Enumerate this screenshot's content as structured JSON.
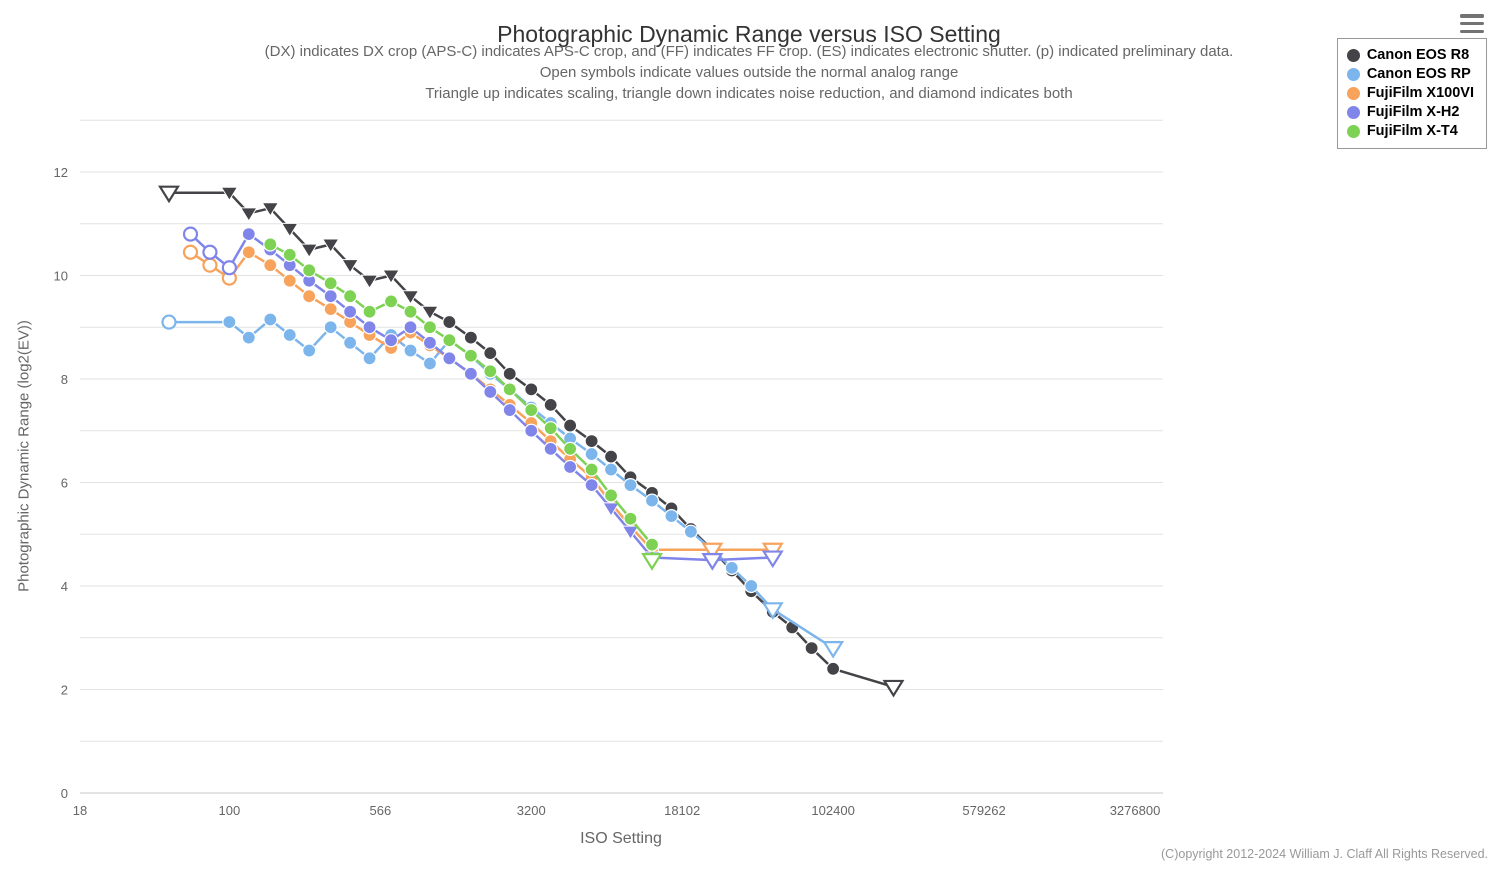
{
  "header": {
    "title": "Photographic Dynamic Range versus ISO Setting",
    "subtitle_lines": [
      "(DX) indicates DX crop (APS-C) indicates APS-C crop, and (FF) indicates FF crop. (ES) indicates electronic shutter. (p) indicated preliminary data.",
      "Open symbols indicate values outside the normal analog range",
      "Triangle up indicates scaling, triangle down indicates noise reduction, and diamond indicates both"
    ]
  },
  "footer": {
    "copyright": "(C)opyright 2012-2024 William J. Claff All Rights Reserved."
  },
  "menu": {
    "icon": "hamburger-icon"
  },
  "chart_data": {
    "type": "line",
    "title": "Photographic Dynamic Range versus ISO Setting",
    "xlabel": "ISO Setting",
    "ylabel": "Photographic Dynamic Range (log2(EV))",
    "x_scale": "log",
    "xlim": [
      18,
      3276800
    ],
    "ylim": [
      0,
      13
    ],
    "grid": "horizontal-every-1EV",
    "legend_position": "top-right",
    "x_ticks": [
      18,
      100,
      566,
      3200,
      18102,
      102400,
      579262,
      3276800
    ],
    "y_ticks_labeled": [
      0,
      2,
      4,
      6,
      8,
      10,
      12
    ],
    "marker_codes": {
      "c": "filled circle",
      "co": "open circle (outside normal analog range)",
      "td": "filled triangle-down (noise reduction)",
      "tdo": "open triangle-down (noise reduction, outside normal analog range)"
    },
    "series": [
      {
        "name": "Canon EOS R8",
        "color": "#434348",
        "points": [
          [
            50,
            11.6,
            "tdo"
          ],
          [
            100,
            11.6,
            "td"
          ],
          [
            125,
            11.2,
            "td"
          ],
          [
            160,
            11.3,
            "td"
          ],
          [
            200,
            10.9,
            "td"
          ],
          [
            250,
            10.5,
            "td"
          ],
          [
            320,
            10.6,
            "td"
          ],
          [
            400,
            10.2,
            "td"
          ],
          [
            500,
            9.9,
            "td"
          ],
          [
            640,
            10.0,
            "td"
          ],
          [
            800,
            9.6,
            "td"
          ],
          [
            1000,
            9.3,
            "td"
          ],
          [
            1250,
            9.1,
            "c"
          ],
          [
            1600,
            8.8,
            "c"
          ],
          [
            2000,
            8.5,
            "c"
          ],
          [
            2500,
            8.1,
            "c"
          ],
          [
            3200,
            7.8,
            "c"
          ],
          [
            4000,
            7.5,
            "c"
          ],
          [
            5000,
            7.1,
            "c"
          ],
          [
            6400,
            6.8,
            "c"
          ],
          [
            8000,
            6.5,
            "c"
          ],
          [
            10000,
            6.1,
            "c"
          ],
          [
            12800,
            5.8,
            "c"
          ],
          [
            16000,
            5.5,
            "c"
          ],
          [
            20000,
            5.1,
            "c"
          ],
          [
            25600,
            4.7,
            "c"
          ],
          [
            32000,
            4.3,
            "c"
          ],
          [
            40000,
            3.9,
            "c"
          ],
          [
            51200,
            3.5,
            "c"
          ],
          [
            64000,
            3.2,
            "c"
          ],
          [
            80000,
            2.8,
            "c"
          ],
          [
            102400,
            2.4,
            "c"
          ],
          [
            204800,
            2.05,
            "tdo"
          ]
        ]
      },
      {
        "name": "Canon EOS RP",
        "color": "#7cb5ec",
        "points": [
          [
            50,
            9.1,
            "co"
          ],
          [
            100,
            9.1,
            "c"
          ],
          [
            125,
            8.8,
            "c"
          ],
          [
            160,
            9.15,
            "c"
          ],
          [
            200,
            8.85,
            "c"
          ],
          [
            250,
            8.55,
            "c"
          ],
          [
            320,
            9.0,
            "c"
          ],
          [
            400,
            8.7,
            "c"
          ],
          [
            500,
            8.4,
            "c"
          ],
          [
            640,
            8.85,
            "c"
          ],
          [
            800,
            8.55,
            "c"
          ],
          [
            1000,
            8.3,
            "c"
          ],
          [
            1250,
            8.75,
            "c"
          ],
          [
            1600,
            8.45,
            "c"
          ],
          [
            2000,
            8.1,
            "c"
          ],
          [
            2500,
            7.8,
            "c"
          ],
          [
            3200,
            7.45,
            "c"
          ],
          [
            4000,
            7.15,
            "c"
          ],
          [
            5000,
            6.85,
            "c"
          ],
          [
            6400,
            6.55,
            "c"
          ],
          [
            8000,
            6.25,
            "c"
          ],
          [
            10000,
            5.95,
            "c"
          ],
          [
            12800,
            5.65,
            "c"
          ],
          [
            16000,
            5.35,
            "c"
          ],
          [
            20000,
            5.05,
            "c"
          ],
          [
            25600,
            4.7,
            "c"
          ],
          [
            32000,
            4.35,
            "c"
          ],
          [
            40000,
            4.0,
            "c"
          ],
          [
            51200,
            3.55,
            "tdo"
          ],
          [
            102400,
            2.8,
            "tdo"
          ]
        ]
      },
      {
        "name": "FujiFilm X100VI",
        "color": "#f7a35c",
        "points": [
          [
            64,
            10.45,
            "co"
          ],
          [
            80,
            10.2,
            "co"
          ],
          [
            100,
            9.95,
            "co"
          ],
          [
            125,
            10.45,
            "c"
          ],
          [
            160,
            10.2,
            "c"
          ],
          [
            200,
            9.9,
            "c"
          ],
          [
            250,
            9.6,
            "c"
          ],
          [
            320,
            9.35,
            "c"
          ],
          [
            400,
            9.1,
            "c"
          ],
          [
            500,
            8.85,
            "c"
          ],
          [
            640,
            8.6,
            "c"
          ],
          [
            800,
            8.9,
            "c"
          ],
          [
            1000,
            8.65,
            "c"
          ],
          [
            1250,
            8.4,
            "c"
          ],
          [
            1600,
            8.1,
            "c"
          ],
          [
            2000,
            7.8,
            "c"
          ],
          [
            2500,
            7.5,
            "c"
          ],
          [
            3200,
            7.15,
            "c"
          ],
          [
            4000,
            6.8,
            "c"
          ],
          [
            5000,
            6.45,
            "c"
          ],
          [
            6400,
            6.1,
            "c"
          ],
          [
            8000,
            5.6,
            "c"
          ],
          [
            10000,
            5.15,
            "c"
          ],
          [
            12800,
            4.7,
            "c"
          ],
          [
            25600,
            4.7,
            "tdo"
          ],
          [
            51200,
            4.7,
            "tdo"
          ]
        ]
      },
      {
        "name": "FujiFilm X-H2",
        "color": "#8085e9",
        "points": [
          [
            64,
            10.8,
            "co"
          ],
          [
            80,
            10.45,
            "co"
          ],
          [
            100,
            10.15,
            "co"
          ],
          [
            125,
            10.8,
            "c"
          ],
          [
            160,
            10.5,
            "c"
          ],
          [
            200,
            10.2,
            "c"
          ],
          [
            250,
            9.9,
            "c"
          ],
          [
            320,
            9.6,
            "c"
          ],
          [
            400,
            9.3,
            "c"
          ],
          [
            500,
            9.0,
            "c"
          ],
          [
            640,
            8.75,
            "c"
          ],
          [
            800,
            9.0,
            "c"
          ],
          [
            1000,
            8.7,
            "c"
          ],
          [
            1250,
            8.4,
            "c"
          ],
          [
            1600,
            8.1,
            "c"
          ],
          [
            2000,
            7.75,
            "c"
          ],
          [
            2500,
            7.4,
            "c"
          ],
          [
            3200,
            7.0,
            "c"
          ],
          [
            4000,
            6.65,
            "c"
          ],
          [
            5000,
            6.3,
            "c"
          ],
          [
            6400,
            5.95,
            "c"
          ],
          [
            8000,
            5.5,
            "td"
          ],
          [
            10000,
            5.05,
            "td"
          ],
          [
            12800,
            4.55,
            "td"
          ],
          [
            25600,
            4.5,
            "tdo"
          ],
          [
            51200,
            4.55,
            "tdo"
          ]
        ]
      },
      {
        "name": "FujiFilm X-T4",
        "color": "#7dd153",
        "points": [
          [
            160,
            10.6,
            "c"
          ],
          [
            200,
            10.4,
            "c"
          ],
          [
            250,
            10.1,
            "c"
          ],
          [
            320,
            9.85,
            "c"
          ],
          [
            400,
            9.6,
            "c"
          ],
          [
            500,
            9.3,
            "c"
          ],
          [
            640,
            9.5,
            "c"
          ],
          [
            800,
            9.3,
            "c"
          ],
          [
            1000,
            9.0,
            "c"
          ],
          [
            1250,
            8.75,
            "c"
          ],
          [
            1600,
            8.45,
            "c"
          ],
          [
            2000,
            8.15,
            "c"
          ],
          [
            2500,
            7.8,
            "c"
          ],
          [
            3200,
            7.4,
            "c"
          ],
          [
            4000,
            7.05,
            "c"
          ],
          [
            5000,
            6.65,
            "c"
          ],
          [
            6400,
            6.25,
            "c"
          ],
          [
            8000,
            5.75,
            "c"
          ],
          [
            10000,
            5.3,
            "c"
          ],
          [
            12800,
            4.8,
            "c"
          ],
          [
            12800,
            4.5,
            "tdo"
          ]
        ]
      }
    ]
  }
}
